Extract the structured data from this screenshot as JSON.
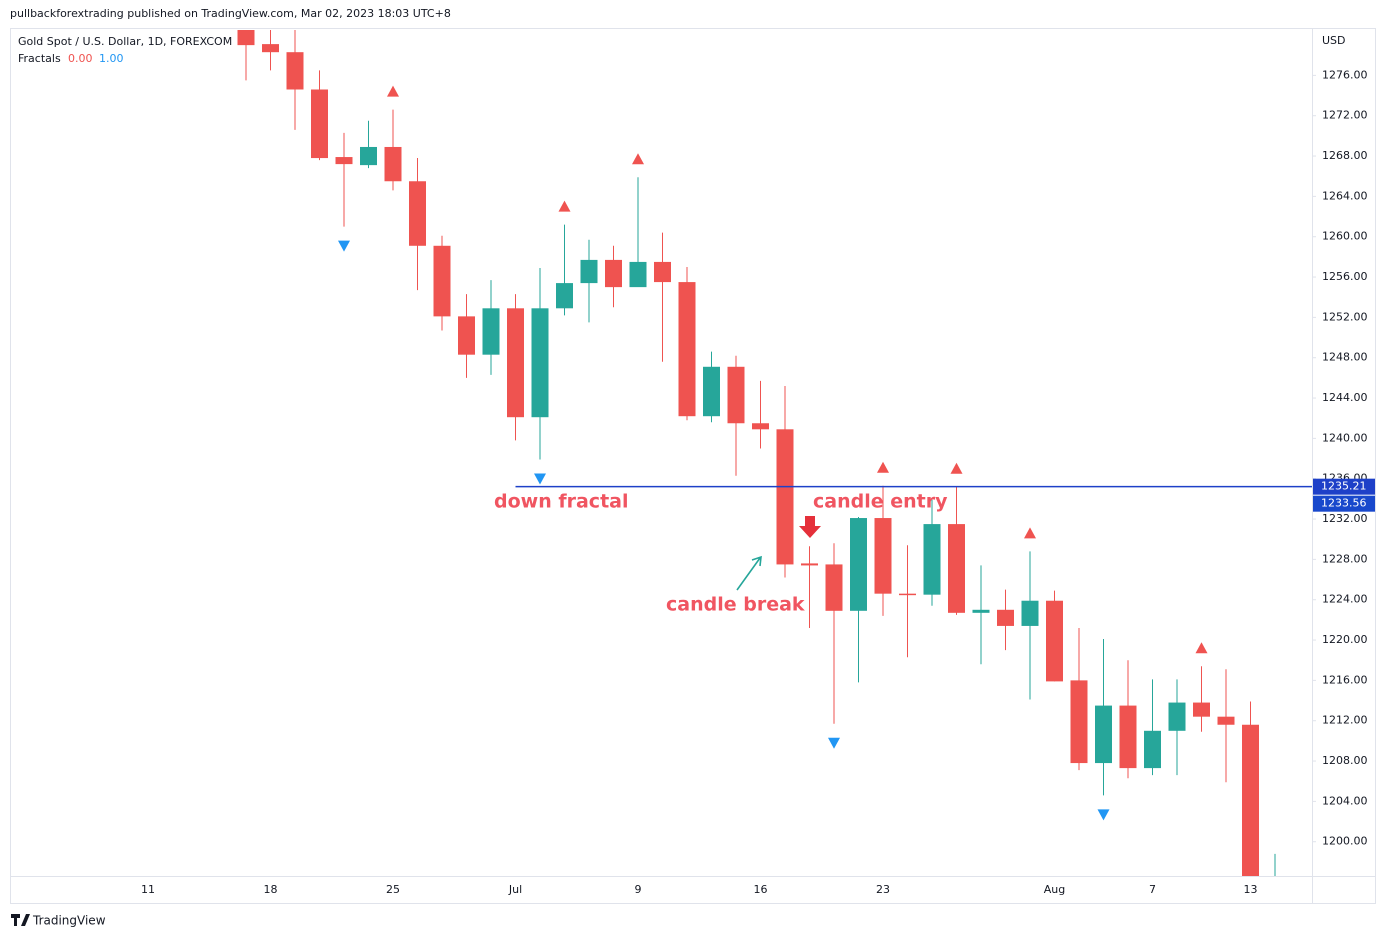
{
  "header": {
    "publisher": "pullbackforextrading published on TradingView.com, Mar 02, 2023 18:03 UTC+8"
  },
  "footer": {
    "brand": "TradingView"
  },
  "chart_data": {
    "type": "candlestick",
    "title": "Gold Spot / U.S. Dollar, 1D, FOREXCOM",
    "indicator": {
      "name": "Fractals",
      "up_value": "0.00",
      "down_value": "1.00"
    },
    "currency": "USD",
    "colors": {
      "up": "#26a69a",
      "down": "#ef5350",
      "up_fractal": "#ef5350",
      "down_fractal": "#2196f3",
      "hline": "#1e40c8"
    },
    "categories": [
      "11",
      null,
      null,
      null,
      null,
      "18",
      null,
      null,
      null,
      null,
      "25",
      null,
      null,
      null,
      null,
      "Jul",
      null,
      null,
      null,
      null,
      "9",
      null,
      null,
      null,
      null,
      "16",
      null,
      null,
      null,
      null,
      "23",
      null,
      null,
      null,
      null,
      null,
      null,
      "Aug",
      null,
      null,
      null,
      "7",
      null,
      null,
      null,
      "13",
      null
    ],
    "open": [
      null,
      null,
      null,
      null,
      1281.5,
      1279.1,
      1278.3,
      1274.6,
      1267.9,
      1267.1,
      1268.9,
      1265.5,
      1259.1,
      1252.1,
      1248.3,
      1252.9,
      1242.1,
      1252.9,
      1255.4,
      1257.7,
      1255.0,
      1257.5,
      1255.5,
      1242.2,
      1247.1,
      1241.5,
      1240.9,
      1227.6,
      1227.5,
      1222.9,
      1232.1,
      1224.6,
      1224.5,
      1231.5,
      1222.7,
      1223.0,
      1221.4,
      1223.9,
      1216.0,
      1207.8,
      1213.5,
      1207.3,
      1211.0,
      1213.8,
      1212.4,
      1211.6,
      1194.0
    ],
    "high": [
      null,
      null,
      null,
      null,
      1283.0,
      1280.7,
      1280.7,
      1276.5,
      1270.3,
      1271.5,
      1272.6,
      1267.8,
      1260.1,
      1254.3,
      1255.7,
      1254.3,
      1256.9,
      1261.2,
      1259.7,
      1259.1,
      1265.9,
      1260.4,
      1257.0,
      1248.6,
      1248.2,
      1245.7,
      1245.2,
      1229.3,
      1229.6,
      1232.2,
      1235.3,
      1229.4,
      1233.9,
      1235.2,
      1227.4,
      1225.0,
      1228.8,
      1224.9,
      1221.2,
      1220.1,
      1218.0,
      1216.1,
      1216.1,
      1217.4,
      1217.1,
      1213.9,
      1198.8
    ],
    "low": [
      null,
      null,
      null,
      null,
      1275.5,
      1276.5,
      1270.6,
      1267.6,
      1261.0,
      1266.8,
      1264.6,
      1254.7,
      1250.7,
      1246.0,
      1246.3,
      1239.8,
      1237.9,
      1252.2,
      1251.5,
      1253.0,
      1255.2,
      1247.6,
      1241.8,
      1241.6,
      1236.3,
      1239.0,
      1226.2,
      1221.2,
      1211.7,
      1215.8,
      1222.4,
      1218.3,
      1223.4,
      1222.5,
      1217.6,
      1219.0,
      1214.1,
      1215.9,
      1207.1,
      1204.6,
      1206.3,
      1206.6,
      1206.6,
      1210.9,
      1205.9,
      1195.0,
      1193.0
    ],
    "close": [
      null,
      null,
      null,
      null,
      1279.0,
      1278.3,
      1274.6,
      1267.8,
      1267.2,
      1268.9,
      1265.5,
      1259.1,
      1252.1,
      1248.3,
      1252.9,
      1242.1,
      1252.9,
      1255.4,
      1257.7,
      1255.0,
      1257.5,
      1255.5,
      1242.2,
      1247.1,
      1241.5,
      1240.9,
      1227.5,
      1227.4,
      1222.9,
      1232.1,
      1224.6,
      1224.5,
      1231.5,
      1222.7,
      1223.0,
      1221.4,
      1223.9,
      1215.9,
      1207.8,
      1213.5,
      1207.3,
      1211.0,
      1213.8,
      1212.4,
      1211.6,
      1196.2,
      1196.0
    ],
    "up_fractals": [
      10,
      17,
      20,
      30,
      33,
      36,
      43
    ],
    "down_fractals": [
      8,
      16,
      28,
      39
    ],
    "hline": 1235.21,
    "last_price": 1233.56,
    "ylim": [
      1196.6,
      1280.5
    ],
    "yticks": [
      {
        "value": 1200,
        "label": "1200.00"
      },
      {
        "value": 1204,
        "label": "1204.00"
      },
      {
        "value": 1208,
        "label": "1208.00"
      },
      {
        "value": 1212,
        "label": "1212.00"
      },
      {
        "value": 1216,
        "label": "1216.00"
      },
      {
        "value": 1220,
        "label": "1220.00"
      },
      {
        "value": 1224,
        "label": "1224.00"
      },
      {
        "value": 1228,
        "label": "1228.00"
      },
      {
        "value": 1232,
        "label": "1232.00"
      },
      {
        "value": 1236,
        "label": "1236.00"
      },
      {
        "value": 1240,
        "label": "1240.00"
      },
      {
        "value": 1244,
        "label": "1244.00"
      },
      {
        "value": 1248,
        "label": "1248.00"
      },
      {
        "value": 1252,
        "label": "1252.00"
      },
      {
        "value": 1256,
        "label": "1256.00"
      },
      {
        "value": 1260,
        "label": "1260.00"
      },
      {
        "value": 1264,
        "label": "1264.00"
      },
      {
        "value": 1268,
        "label": "1268.00"
      },
      {
        "value": 1272,
        "label": "1272.00"
      },
      {
        "value": 1276,
        "label": "1276.00"
      }
    ],
    "annotations": [
      "down fractal",
      "candle entry",
      "candle break"
    ]
  }
}
